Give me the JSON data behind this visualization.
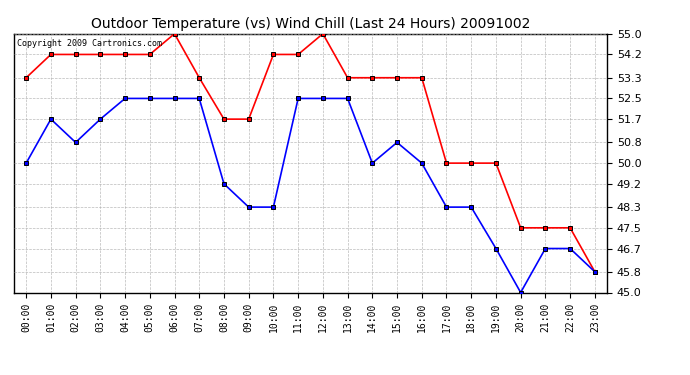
{
  "title": "Outdoor Temperature (vs) Wind Chill (Last 24 Hours) 20091002",
  "copyright": "Copyright 2009 Cartronics.com",
  "hours": [
    "00:00",
    "01:00",
    "02:00",
    "03:00",
    "04:00",
    "05:00",
    "06:00",
    "07:00",
    "08:00",
    "09:00",
    "10:00",
    "11:00",
    "12:00",
    "13:00",
    "14:00",
    "15:00",
    "16:00",
    "17:00",
    "18:00",
    "19:00",
    "20:00",
    "21:00",
    "22:00",
    "23:00"
  ],
  "temp": [
    53.3,
    54.2,
    54.2,
    54.2,
    54.2,
    54.2,
    55.0,
    53.3,
    51.7,
    51.7,
    54.2,
    54.2,
    55.0,
    53.3,
    53.3,
    53.3,
    53.3,
    50.0,
    50.0,
    50.0,
    47.5,
    47.5,
    47.5,
    45.8
  ],
  "windchill": [
    50.0,
    51.7,
    50.8,
    51.7,
    52.5,
    52.5,
    52.5,
    52.5,
    49.2,
    48.3,
    48.3,
    52.5,
    52.5,
    52.5,
    50.0,
    50.8,
    50.0,
    48.3,
    48.3,
    46.7,
    45.0,
    46.7,
    46.7,
    45.8
  ],
  "temp_color": "#ff0000",
  "windchill_color": "#0000ff",
  "ylim_min": 45.0,
  "ylim_max": 55.0,
  "ytick_labels": [
    "45.0",
    "45.8",
    "46.7",
    "47.5",
    "48.3",
    "49.2",
    "50.0",
    "50.8",
    "51.7",
    "52.5",
    "53.3",
    "54.2",
    "55.0"
  ],
  "ytick_values": [
    45.0,
    45.8,
    46.7,
    47.5,
    48.3,
    49.2,
    50.0,
    50.8,
    51.7,
    52.5,
    53.3,
    54.2,
    55.0
  ],
  "background_color": "#ffffff",
  "grid_color": "#aaaaaa",
  "title_fontsize": 10,
  "copyright_fontsize": 6,
  "xtick_fontsize": 7,
  "ytick_fontsize": 8,
  "marker": "s",
  "marker_color": "#000000",
  "marker_size": 3,
  "linewidth": 1.2
}
